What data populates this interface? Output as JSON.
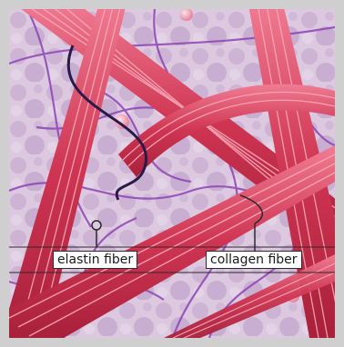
{
  "labels": {
    "elastin": "elastin fiber",
    "collagen": "collagen fiber"
  },
  "colors": {
    "frame": "#cfcfcf",
    "background": "#d9c7dd",
    "collagen": "#c8324f",
    "elastin": "#8a3fb0",
    "label_line": "#2a2a2a"
  }
}
